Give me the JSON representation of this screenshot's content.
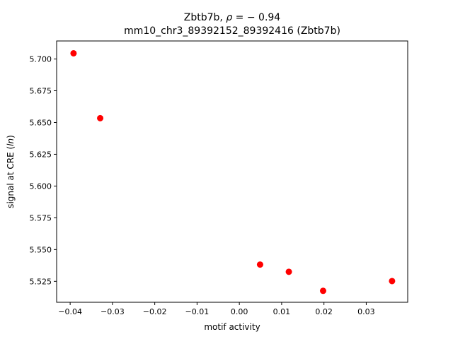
{
  "chart_data": {
    "type": "scatter",
    "title_line1_prefix": "Zbtb7b, ",
    "title_line1_rho": "ρ",
    "title_line1_suffix": " = − 0.94",
    "title_line2": "mm10_chr3_89392152_89392416 (Zbtb7b)",
    "xlabel": "motif activity",
    "ylabel_prefix": "signal at CRE (",
    "ylabel_italic": "ln",
    "ylabel_suffix": ")",
    "xlim": [
      -0.0432,
      0.0398
    ],
    "ylim": [
      5.5085,
      5.7142
    ],
    "xticks": [
      -0.04,
      -0.03,
      -0.02,
      -0.01,
      0.0,
      0.01,
      0.02,
      0.03
    ],
    "xtick_labels": [
      "−0.04",
      "−0.03",
      "−0.02",
      "−0.01",
      "0.00",
      "0.01",
      "0.02",
      "0.03"
    ],
    "yticks": [
      5.525,
      5.55,
      5.575,
      5.6,
      5.625,
      5.65,
      5.675,
      5.7
    ],
    "ytick_labels": [
      "5.525",
      "5.550",
      "5.575",
      "5.600",
      "5.625",
      "5.650",
      "5.675",
      "5.700"
    ],
    "marker_color": "#ff0000",
    "points": [
      {
        "x": -0.0392,
        "y": 5.7045
      },
      {
        "x": -0.0329,
        "y": 5.6534
      },
      {
        "x": 0.0049,
        "y": 5.5382
      },
      {
        "x": 0.0117,
        "y": 5.5325
      },
      {
        "x": 0.0198,
        "y": 5.5175
      },
      {
        "x": 0.0361,
        "y": 5.5252
      }
    ]
  }
}
